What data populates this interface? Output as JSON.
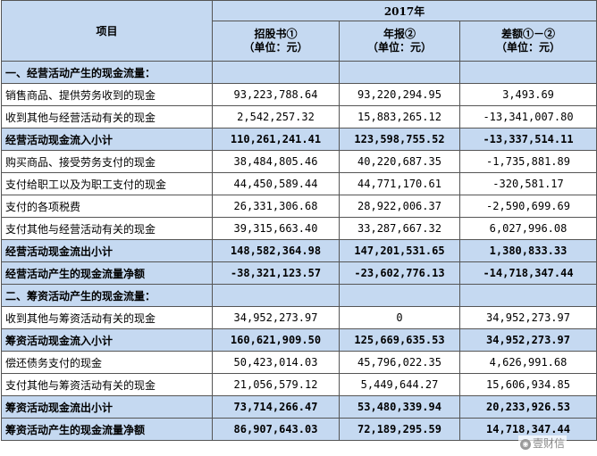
{
  "header": {
    "item_label": "项目",
    "year": "2017年",
    "columns": [
      {
        "title": "招股书①",
        "unit": "（单位：元）"
      },
      {
        "title": "年报②",
        "unit": "（单位：元）"
      },
      {
        "title": "差额①－②",
        "unit": "（单位：元）"
      }
    ]
  },
  "rows": [
    {
      "name": "一、经营活动产生的现金流量：",
      "v1": "",
      "v2": "",
      "v3": ""
    },
    {
      "name": "销售商品、提供劳务收到的现金",
      "v1": "93,223,788.64",
      "v2": "93,220,294.95",
      "v3": "3,493.69"
    },
    {
      "name": "收到其他与经营活动有关的现金",
      "v1": "2,542,257.32",
      "v2": "15,883,265.12",
      "v3": "-13,341,007.80"
    },
    {
      "name": "经营活动现金流入小计",
      "v1": "110,261,241.41",
      "v2": "123,598,755.52",
      "v3": "-13,337,514.11"
    },
    {
      "name": "购买商品、接受劳务支付的现金",
      "v1": "38,484,805.46",
      "v2": "40,220,687.35",
      "v3": "-1,735,881.89"
    },
    {
      "name": "支付给职工以及为职工支付的现金",
      "v1": "44,450,589.44",
      "v2": "44,771,170.61",
      "v3": "-320,581.17"
    },
    {
      "name": "支付的各项税费",
      "v1": "26,331,306.68",
      "v2": "28,922,006.37",
      "v3": "-2,590,699.69"
    },
    {
      "name": "支付其他与经营活动有关的现金",
      "v1": "39,315,663.40",
      "v2": "33,287,667.32",
      "v3": "6,027,996.08"
    },
    {
      "name": "经营活动现金流出小计",
      "v1": "148,582,364.98",
      "v2": "147,201,531.65",
      "v3": "1,380,833.33"
    },
    {
      "name": "经营活动产生的现金流量净额",
      "v1": "-38,321,123.57",
      "v2": "-23,602,776.13",
      "v3": "-14,718,347.44"
    },
    {
      "name": "二、筹资活动产生的现金流量：",
      "v1": "",
      "v2": "",
      "v3": ""
    },
    {
      "name": "收到其他与筹资活动有关的现金",
      "v1": "34,952,273.97",
      "v2": "0",
      "v3": "34,952,273.97"
    },
    {
      "name": "筹资活动现金流入小计",
      "v1": "160,621,909.50",
      "v2": "125,669,635.53",
      "v3": "34,952,273.97"
    },
    {
      "name": "偿还债务支付的现金",
      "v1": "50,423,014.03",
      "v2": "45,796,022.35",
      "v3": "4,626,991.68"
    },
    {
      "name": "支付其他与筹资活动有关的现金",
      "v1": "21,056,579.12",
      "v2": "5,449,644.27",
      "v3": "15,606,934.85"
    },
    {
      "name": "筹资活动现金流出小计",
      "v1": "73,714,266.47",
      "v2": "53,480,339.94",
      "v3": "20,233,926.53"
    },
    {
      "name": "筹资活动产生的现金流量净额",
      "v1": "86,907,643.03",
      "v2": "72,189,295.59",
      "v3": "14,718,347.44"
    }
  ],
  "watermark": {
    "text": "壹财信",
    "icon": "wechat-icon"
  },
  "colors": {
    "header_bg": "#c5d9f1",
    "border": "#555555"
  }
}
